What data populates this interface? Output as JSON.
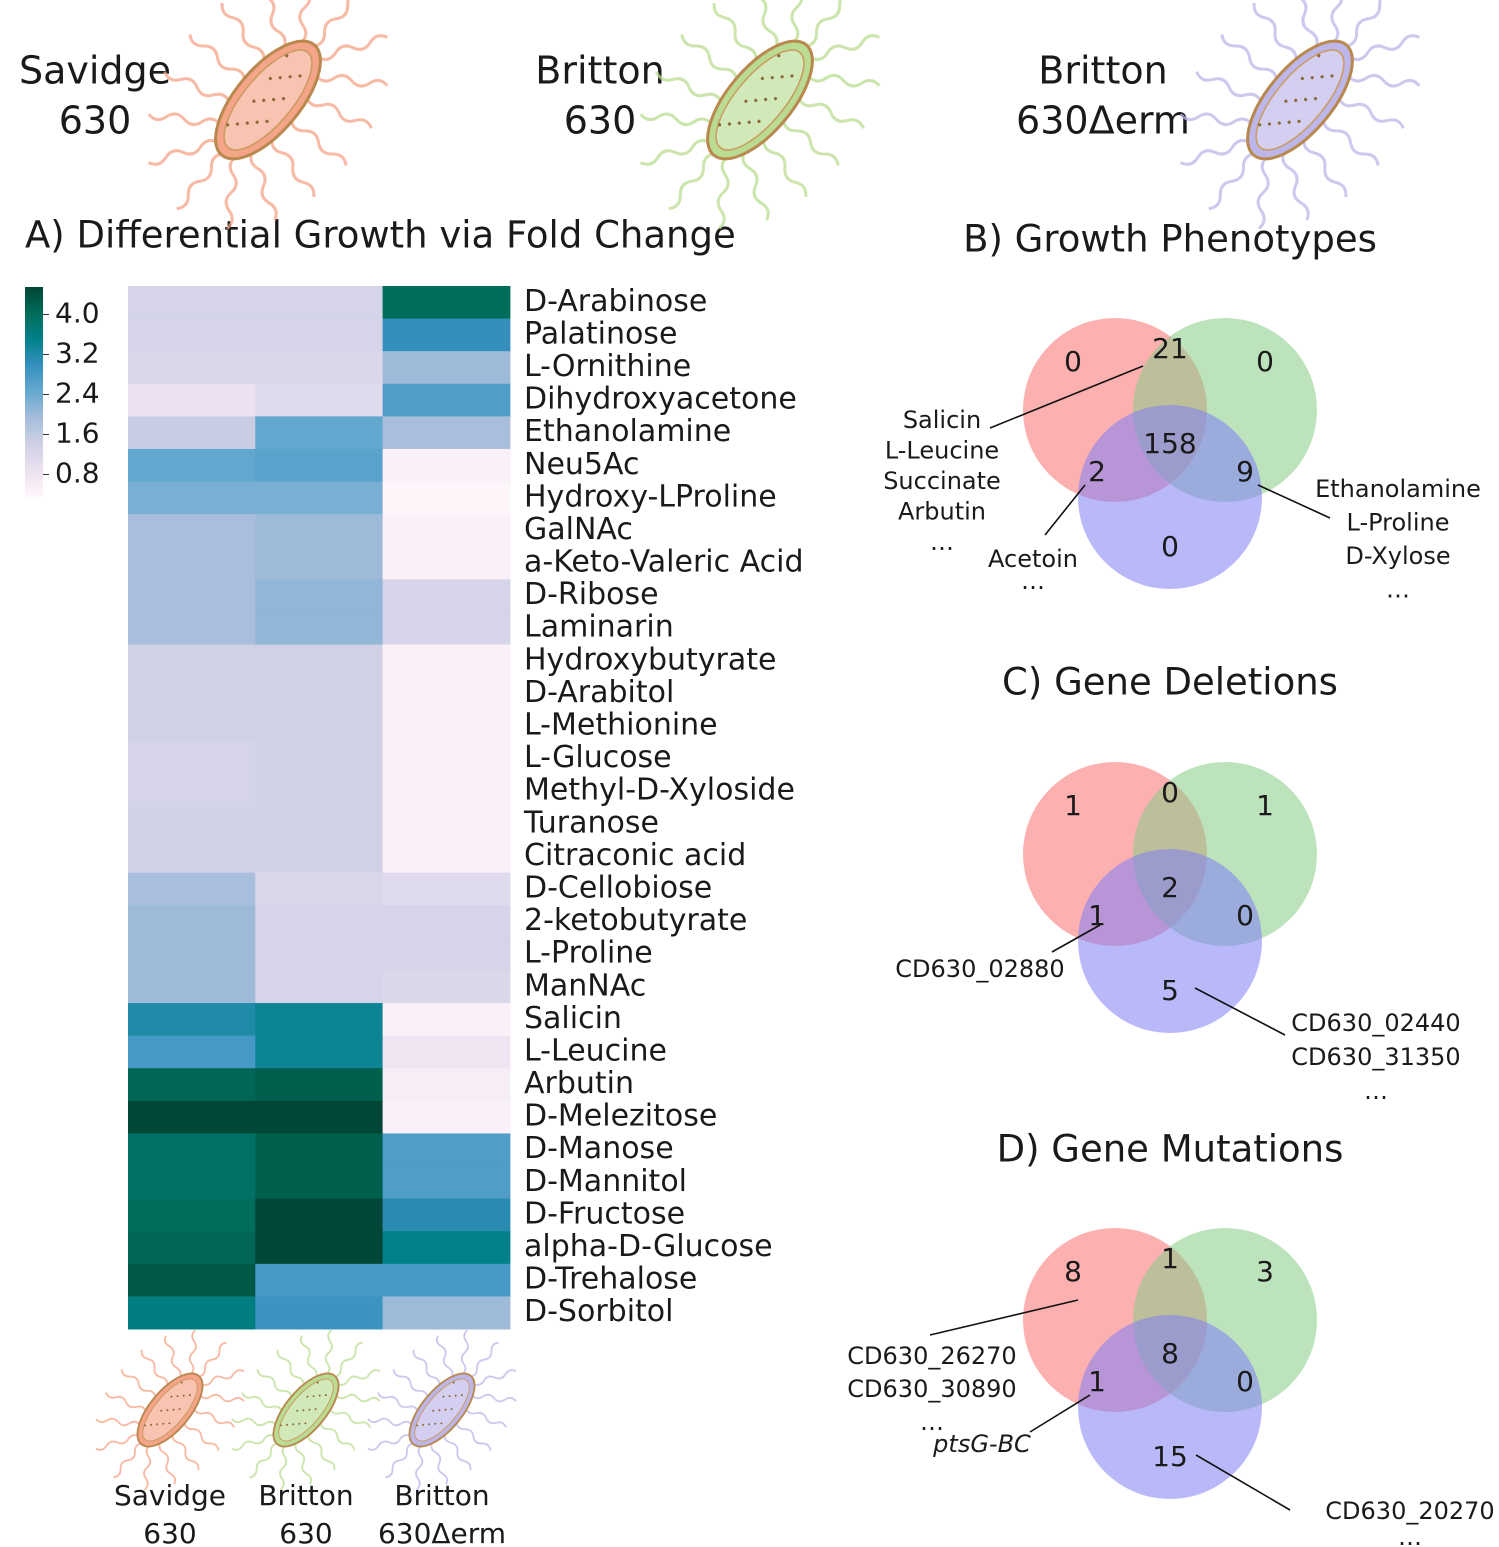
{
  "chart_data": [
    {
      "type": "heatmap",
      "title": "A) Differential Growth via Fold Change",
      "columns": [
        {
          "name": "Savidge",
          "id": "630",
          "color": "#f4a487"
        },
        {
          "name": "Britton",
          "id": "630",
          "color": "#b9dc92"
        },
        {
          "name": "Britton",
          "id": "630Δerm",
          "color": "#bdb6ea"
        }
      ],
      "rows": [
        "D-Arabinose",
        "Palatinose",
        "L-Ornithine",
        "Dihydroxyacetone",
        "Ethanolamine",
        "Neu5Ac",
        "Hydroxy-LProline",
        "GalNAc",
        "a-Keto-Valeric Acid",
        "D-Ribose",
        "Laminarin",
        "Hydroxybutyrate",
        "D-Arabitol",
        "L-Methionine",
        "L-Glucose",
        "Methyl-D-Xyloside",
        "Turanose",
        "Citraconic acid",
        "D-Cellobiose",
        "2-ketobutyrate",
        "L-Proline",
        "ManNAc",
        "Salicin",
        "L-Leucine",
        "Arbutin",
        "D-Melezitose",
        "D-Manose",
        "D-Mannitol",
        "D-Fructose",
        "alpha-D-Glucose",
        "D-Trehalose",
        "D-Sorbitol"
      ],
      "values": [
        [
          1.3,
          1.3,
          4.0
        ],
        [
          1.3,
          1.3,
          3.0
        ],
        [
          1.2,
          1.2,
          2.0
        ],
        [
          0.9,
          1.1,
          2.7
        ],
        [
          1.5,
          2.5,
          1.9
        ],
        [
          2.5,
          2.6,
          0.5
        ],
        [
          2.3,
          2.3,
          0.4
        ],
        [
          1.9,
          2.0,
          0.5
        ],
        [
          1.9,
          2.0,
          0.5
        ],
        [
          1.9,
          2.1,
          1.3
        ],
        [
          1.9,
          2.1,
          1.3
        ],
        [
          1.4,
          1.4,
          0.5
        ],
        [
          1.4,
          1.4,
          0.5
        ],
        [
          1.4,
          1.4,
          0.5
        ],
        [
          1.3,
          1.4,
          0.5
        ],
        [
          1.3,
          1.4,
          0.5
        ],
        [
          1.4,
          1.4,
          0.5
        ],
        [
          1.4,
          1.4,
          0.5
        ],
        [
          1.9,
          1.2,
          1.1
        ],
        [
          2.0,
          1.3,
          1.3
        ],
        [
          2.0,
          1.3,
          1.3
        ],
        [
          2.0,
          1.3,
          1.2
        ],
        [
          3.2,
          3.4,
          0.5
        ],
        [
          2.8,
          3.4,
          0.8
        ],
        [
          4.1,
          4.2,
          0.6
        ],
        [
          4.7,
          4.8,
          0.5
        ],
        [
          3.9,
          4.2,
          2.7
        ],
        [
          3.9,
          4.2,
          2.7
        ],
        [
          4.0,
          4.6,
          3.1
        ],
        [
          4.1,
          4.9,
          3.5
        ],
        [
          4.3,
          2.8,
          2.8
        ],
        [
          3.6,
          2.9,
          2.0
        ]
      ],
      "zlim": [
        0.35,
        4.55
      ],
      "zticks": [
        0.8,
        1.6,
        2.4,
        3.2,
        {
          "value": 4.0,
          "label": "4.0"
        }
      ],
      "colorscale": [
        "#fff7fb",
        "#ece2f0",
        "#d0d1e6",
        "#a6bddb",
        "#67a9cf",
        "#3690c0",
        "#02818a",
        "#016c59",
        "#014636"
      ]
    },
    {
      "type": "venn",
      "title": "B) Growth Phenotypes",
      "colors": [
        "#fb6f6f",
        "#86cc86",
        "#7f7ff6"
      ],
      "values": [
        0,
        21,
        0,
        2,
        158,
        9,
        0
      ],
      "annotations": [
        {
          "lines": [
            "Salicin",
            "L-Leucine",
            "Succinate",
            "Arbutin",
            "…"
          ]
        },
        {
          "lines": [
            "Acetoin",
            "…"
          ]
        },
        {
          "lines": [
            "Ethanolamine",
            "L-Proline",
            "D-Xylose",
            "…"
          ]
        }
      ]
    },
    {
      "type": "venn",
      "title": "C) Gene Deletions",
      "colors": [
        "#fb6f6f",
        "#86cc86",
        "#7f7ff6"
      ],
      "values": [
        1,
        0,
        1,
        1,
        2,
        0,
        5
      ],
      "annotations": [
        {
          "lines": [
            "CD630_02880"
          ]
        },
        {
          "lines": [
            "CD630_02440",
            "CD630_31350",
            "…"
          ]
        }
      ]
    },
    {
      "type": "venn",
      "title": "D) Gene Mutations",
      "colors": [
        "#fb6f6f",
        "#86cc86",
        "#7f7ff6"
      ],
      "values": [
        8,
        1,
        3,
        1,
        8,
        0,
        15
      ],
      "annotations": [
        {
          "lines": [
            "CD630_26270",
            "CD630_30890",
            "…"
          ]
        },
        {
          "lines": [
            "ptsG-BC"
          ],
          "italic": true
        },
        {
          "lines": [
            "CD630_20270",
            "…"
          ]
        }
      ]
    }
  ]
}
